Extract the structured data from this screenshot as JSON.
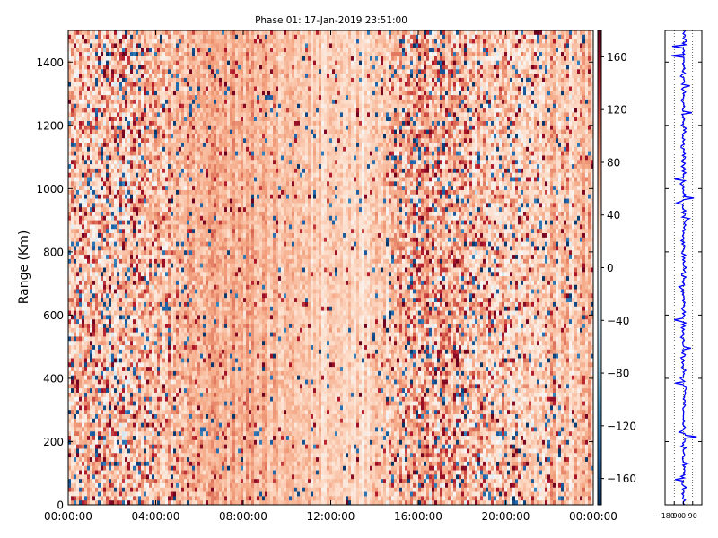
{
  "chart_data": [
    {
      "type": "heatmap",
      "title": "Phase 01: 17-Jan-2019 23:51:00",
      "xlabel": "",
      "ylabel": "Range (Km)",
      "ylim": [
        0,
        1500
      ],
      "y_ticks": [
        0,
        200,
        400,
        600,
        800,
        1000,
        1200,
        1400
      ],
      "x_tick_labels": [
        "00:00:00",
        "04:00:00",
        "08:00:00",
        "12:00:00",
        "16:00:00",
        "20:00:00",
        "00:00:00"
      ],
      "x_range_hours": [
        0,
        24
      ],
      "grid": false,
      "colorbar": {
        "range": [
          -180,
          180
        ],
        "ticks": [
          -160,
          -120,
          -80,
          -40,
          0,
          40,
          80,
          120,
          160
        ],
        "colormap": [
          "#053061",
          "#2166ac",
          "#4393c3",
          "#92c5de",
          "#d1e5f0",
          "#f7f7f7",
          "#fddbc7",
          "#f4a582",
          "#d6604d",
          "#b2182b",
          "#67001f"
        ]
      },
      "noise_profile_by_hour": [
        {
          "hour": 0,
          "mean": 50,
          "spread": 90
        },
        {
          "hour": 2,
          "mean": 45,
          "spread": 110
        },
        {
          "hour": 4,
          "mean": 55,
          "spread": 80
        },
        {
          "hour": 6,
          "mean": 60,
          "spread": 45
        },
        {
          "hour": 8,
          "mean": 62,
          "spread": 35
        },
        {
          "hour": 10,
          "mean": 55,
          "spread": 35
        },
        {
          "hour": 12,
          "mean": 40,
          "spread": 30
        },
        {
          "hour": 14,
          "mean": 45,
          "spread": 35
        },
        {
          "hour": 16,
          "mean": 60,
          "spread": 110
        },
        {
          "hour": 18,
          "mean": 50,
          "spread": 95
        },
        {
          "hour": 20,
          "mean": 40,
          "spread": 80
        },
        {
          "hour": 22,
          "mean": 45,
          "spread": 60
        },
        {
          "hour": 24,
          "mean": 55,
          "spread": 45
        }
      ]
    },
    {
      "type": "line",
      "title": "",
      "xlabel": "",
      "ylabel": "",
      "xlim": [
        -180,
        180
      ],
      "ylim": [
        0,
        1500
      ],
      "x_tick_labels": [
        "−180",
        "−90",
        "0",
        "90"
      ],
      "x_ticks": [
        -180,
        -90,
        0,
        90
      ],
      "grid": true,
      "line_color": "#0000ff",
      "profile_center": 0,
      "profile_spread": 40
    }
  ]
}
